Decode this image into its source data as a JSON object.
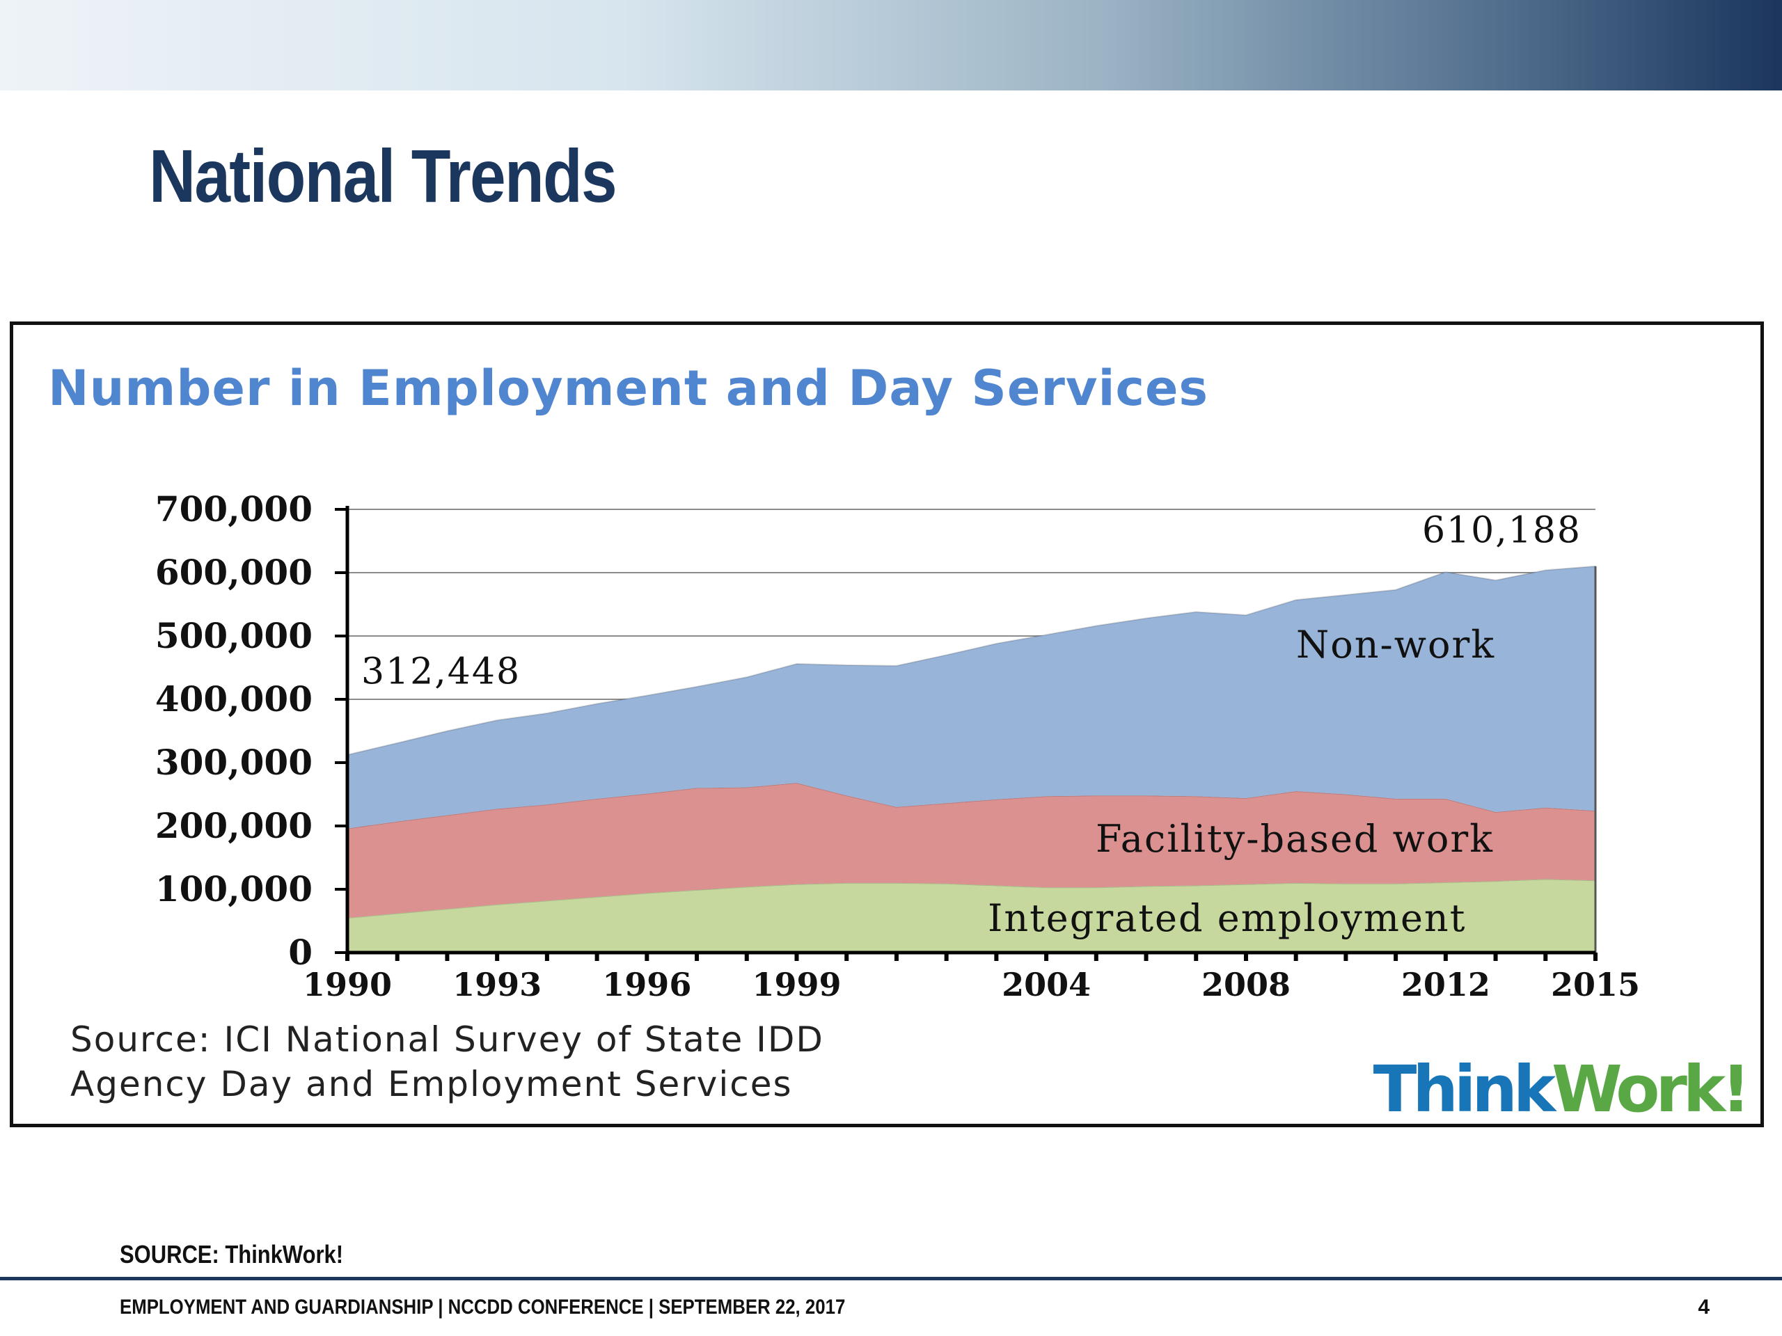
{
  "slide": {
    "title": "National Trends",
    "source_note": "SOURCE: ThinkWork!",
    "footer": "EMPLOYMENT AND GUARDIANSHIP | NCCDD CONFERENCE | SEPTEMBER 22, 2017",
    "page_number": "4",
    "logo_think": "Think",
    "logo_work": "Work!"
  },
  "colors": {
    "title": "#1c375e",
    "chart_title": "#4f86cf",
    "non_work": "#98b4d9",
    "facility": "#da9190",
    "integrated": "#c6d89e"
  },
  "chart_data": {
    "type": "area",
    "stacked": true,
    "title": "Number in Employment and Day Services",
    "source_lines": [
      "Source: ICI National Survey of State IDD",
      "Agency Day and Employment Services"
    ],
    "x": [
      1990,
      1991,
      1992,
      1993,
      1994,
      1995,
      1996,
      1997,
      1998,
      1999,
      2000,
      2001,
      2002,
      2003,
      2004,
      2005,
      2006,
      2007,
      2008,
      2009,
      2010,
      2011,
      2012,
      2013,
      2014,
      2015
    ],
    "x_tick_labels": [
      1990,
      1993,
      1996,
      1999,
      2004,
      2008,
      2012,
      2015
    ],
    "ylim": [
      0,
      700000
    ],
    "y_ticks": [
      0,
      100000,
      200000,
      300000,
      400000,
      500000,
      600000,
      700000
    ],
    "y_tick_labels": [
      "0",
      "100,000",
      "200,000",
      "300,000",
      "400,000",
      "500,000",
      "600,000",
      "700,000"
    ],
    "grid": true,
    "series": [
      {
        "name": "Integrated employment",
        "values": [
          55000,
          62000,
          69000,
          76000,
          82000,
          88000,
          94000,
          99000,
          104000,
          108000,
          110000,
          110000,
          109000,
          106000,
          103000,
          103000,
          105000,
          106000,
          108000,
          110000,
          109000,
          109000,
          111000,
          113000,
          116000,
          114000
        ]
      },
      {
        "name": "Facility-based work",
        "values": [
          141000,
          145000,
          148000,
          151000,
          152000,
          155000,
          157000,
          161000,
          157000,
          160000,
          138000,
          120000,
          127000,
          136000,
          144000,
          145000,
          143000,
          141000,
          136000,
          145000,
          141000,
          134000,
          132000,
          109000,
          113000,
          110000
        ]
      },
      {
        "name": "Non-work",
        "values": [
          116448,
          124000,
          133000,
          140000,
          144000,
          150000,
          155000,
          160000,
          174000,
          188000,
          206000,
          223000,
          234000,
          246000,
          255000,
          268000,
          280000,
          291000,
          289000,
          302000,
          315000,
          330000,
          358000,
          366000,
          375000,
          386188
        ]
      }
    ],
    "annotations": [
      {
        "text": "312,448",
        "x": 1990,
        "y": 312448
      },
      {
        "text": "610,188",
        "x": 2015,
        "y": 610188
      }
    ]
  }
}
